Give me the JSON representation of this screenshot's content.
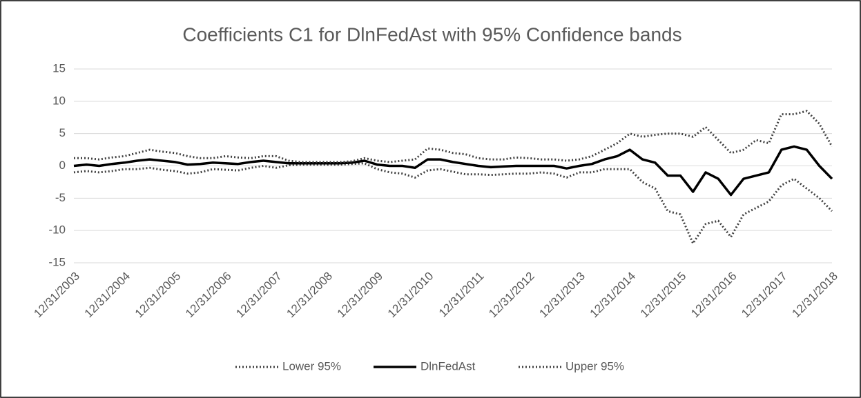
{
  "chart_data": {
    "type": "line",
    "title": "Coefficients C1 for DlnFedAst with 95% Confidence bands",
    "categories": [
      "12/31/2003",
      null,
      null,
      null,
      "12/31/2004",
      null,
      null,
      null,
      "12/31/2005",
      null,
      null,
      null,
      "12/31/2006",
      null,
      null,
      null,
      "12/31/2007",
      null,
      null,
      null,
      "12/31/2008",
      null,
      null,
      null,
      "12/31/2009",
      null,
      null,
      null,
      "12/31/2010",
      null,
      null,
      null,
      "12/31/2011",
      null,
      null,
      null,
      "12/31/2012",
      null,
      null,
      null,
      "12/31/2013",
      null,
      null,
      null,
      "12/31/2014",
      null,
      null,
      null,
      "12/31/2015",
      null,
      null,
      null,
      "12/31/2016",
      null,
      null,
      null,
      "12/31/2017",
      null,
      null,
      null,
      "12/31/2018"
    ],
    "series": [
      {
        "name": "Lower 95%",
        "color": "#404040",
        "style": "dotted",
        "values": [
          -1.0,
          -0.8,
          -1.0,
          -0.8,
          -0.5,
          -0.5,
          -0.3,
          -0.6,
          -0.8,
          -1.2,
          -1.0,
          -0.5,
          -0.6,
          -0.7,
          -0.3,
          0.0,
          -0.3,
          0.1,
          0.2,
          0.2,
          0.2,
          0.2,
          0.3,
          0.4,
          -0.5,
          -1.0,
          -1.2,
          -1.8,
          -0.7,
          -0.5,
          -0.9,
          -1.3,
          -1.3,
          -1.4,
          -1.3,
          -1.2,
          -1.2,
          -1.0,
          -1.2,
          -1.8,
          -1.0,
          -1.0,
          -0.5,
          -0.5,
          -0.5,
          -2.5,
          -3.5,
          -7.0,
          -7.5,
          -12.0,
          -9.0,
          -8.5,
          -11.0,
          -7.5,
          -6.5,
          -5.5,
          -3.0,
          -2.0,
          -3.5,
          -5.0,
          -7.0
        ]
      },
      {
        "name": "DlnFedAst",
        "color": "#000000",
        "style": "solid",
        "values": [
          0,
          0.2,
          0.0,
          0.3,
          0.5,
          0.8,
          1.0,
          0.8,
          0.6,
          0.2,
          0.3,
          0.5,
          0.4,
          0.3,
          0.6,
          0.8,
          0.6,
          0.4,
          0.4,
          0.4,
          0.4,
          0.4,
          0.5,
          0.8,
          0.2,
          0.0,
          0.0,
          -0.3,
          1.0,
          1.0,
          0.6,
          0.3,
          0.0,
          -0.2,
          -0.1,
          0.0,
          0.0,
          0.0,
          0.0,
          -0.4,
          0.0,
          0.3,
          1.0,
          1.5,
          2.5,
          1.0,
          0.5,
          -1.5,
          -1.5,
          -4.0,
          -1.0,
          -2.0,
          -4.5,
          -2.0,
          -1.5,
          -1.0,
          2.5,
          3.0,
          2.5,
          0.0,
          -2.0
        ]
      },
      {
        "name": "Upper 95%",
        "color": "#404040",
        "style": "dotted",
        "values": [
          1.2,
          1.2,
          1.0,
          1.3,
          1.5,
          2.0,
          2.5,
          2.2,
          2.0,
          1.5,
          1.2,
          1.2,
          1.5,
          1.3,
          1.2,
          1.5,
          1.5,
          0.8,
          0.6,
          0.6,
          0.6,
          0.6,
          0.7,
          1.2,
          0.8,
          0.6,
          0.8,
          1.0,
          2.7,
          2.5,
          2.0,
          1.8,
          1.2,
          1.0,
          1.0,
          1.3,
          1.2,
          1.0,
          1.0,
          0.8,
          1.0,
          1.5,
          2.5,
          3.5,
          5.0,
          4.5,
          4.8,
          5.0,
          5.0,
          4.5,
          6.0,
          4.0,
          2.0,
          2.5,
          4.0,
          3.5,
          8.0,
          8.0,
          8.5,
          6.5,
          3.0
        ]
      }
    ],
    "ylim": [
      -15,
      15
    ],
    "yticks": [
      -15,
      -10,
      -5,
      0,
      5,
      10,
      15
    ],
    "grid": true,
    "legend": "bottom"
  }
}
